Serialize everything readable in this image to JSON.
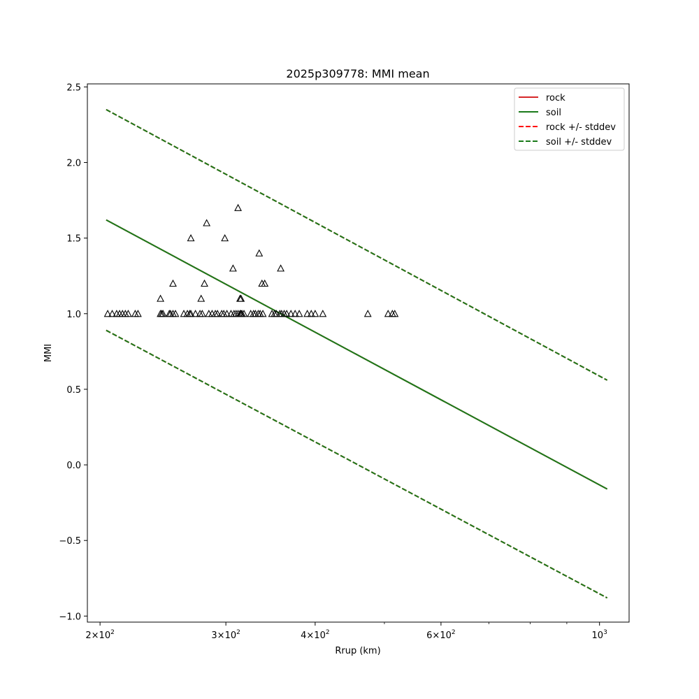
{
  "chart_data": {
    "type": "scatter",
    "title": "2025p309778: MMI mean",
    "xlabel": "Rrup (km)",
    "ylabel": "MMI",
    "xscale": "log",
    "xlim": [
      192,
      1100
    ],
    "ylim": [
      -1.04,
      2.52
    ],
    "xticks_major": [
      {
        "value": 200,
        "mant": "2",
        "exp": "2"
      },
      {
        "value": 300,
        "mant": "3",
        "exp": "2"
      },
      {
        "value": 400,
        "mant": "4",
        "exp": "2"
      },
      {
        "value": 600,
        "mant": "6",
        "exp": "2"
      },
      {
        "value": 1000,
        "mant": "",
        "exp": "3"
      }
    ],
    "xticks_minor": [
      500,
      700,
      800,
      900
    ],
    "yticks": [
      {
        "value": 2.5,
        "label": "2.5"
      },
      {
        "value": 2.0,
        "label": "2.0"
      },
      {
        "value": 1.5,
        "label": "1.5"
      },
      {
        "value": 1.0,
        "label": "1.0"
      },
      {
        "value": 0.5,
        "label": "0.5"
      },
      {
        "value": 0.0,
        "label": "0.0"
      },
      {
        "value": -0.5,
        "label": "−0.5"
      },
      {
        "value": -1.0,
        "label": "−1.0"
      }
    ],
    "grid": false,
    "legend_position": "top-right",
    "series": [
      {
        "name": "rock",
        "style": "solid",
        "color": "#d62728",
        "x": [
          204,
          1025
        ],
        "y": [
          1.62,
          -0.16
        ]
      },
      {
        "name": "soil",
        "style": "solid",
        "color": "#1a7a1a",
        "x": [
          204,
          1025
        ],
        "y": [
          1.62,
          -0.16
        ]
      },
      {
        "name": "rock +/- stddev",
        "style": "dashed",
        "color": "#ff0000",
        "x": [
          204,
          1025
        ],
        "y": [
          2.35,
          0.56
        ],
        "x2": [
          204,
          1025
        ],
        "y2": [
          0.89,
          -0.88
        ]
      },
      {
        "name": "soil +/- stddev",
        "style": "dashed",
        "color": "#1a7a1a",
        "x": [
          204,
          1025
        ],
        "y": [
          2.35,
          0.56
        ],
        "x2": [
          204,
          1025
        ],
        "y2": [
          0.89,
          -0.88
        ]
      }
    ],
    "observations": {
      "marker": "triangle",
      "x": [
        205,
        208,
        211,
        213,
        215,
        217,
        219,
        224,
        226,
        243,
        244,
        245,
        250,
        251,
        253,
        255,
        262,
        265,
        267,
        268,
        272,
        276,
        278,
        284,
        287,
        290,
        292,
        296,
        298,
        301,
        305,
        308,
        310,
        312,
        314,
        315,
        316,
        318,
        325,
        328,
        330,
        333,
        335,
        338,
        348,
        351,
        353,
        357,
        359,
        362,
        365,
        370,
        375,
        380,
        390,
        395,
        400,
        410,
        474,
        506,
        513,
        517,
        243,
        253,
        268,
        277,
        282,
        280,
        299,
        307,
        312,
        314,
        315,
        334,
        337,
        340,
        358
      ],
      "y": [
        1.0,
        1.0,
        1.0,
        1.0,
        1.0,
        1.0,
        1.0,
        1.0,
        1.0,
        1.0,
        1.0,
        1.0,
        1.0,
        1.0,
        1.0,
        1.0,
        1.0,
        1.0,
        1.0,
        1.0,
        1.0,
        1.0,
        1.0,
        1.0,
        1.0,
        1.0,
        1.0,
        1.0,
        1.0,
        1.0,
        1.0,
        1.0,
        1.0,
        1.0,
        1.0,
        1.0,
        1.0,
        1.0,
        1.0,
        1.0,
        1.0,
        1.0,
        1.0,
        1.0,
        1.0,
        1.0,
        1.0,
        1.0,
        1.0,
        1.0,
        1.0,
        1.0,
        1.0,
        1.0,
        1.0,
        1.0,
        1.0,
        1.0,
        1.0,
        1.0,
        1.0,
        1.0,
        1.1,
        1.2,
        1.5,
        1.1,
        1.6,
        1.2,
        1.5,
        1.3,
        1.7,
        1.1,
        1.1,
        1.4,
        1.2,
        1.2,
        1.3
      ]
    }
  }
}
